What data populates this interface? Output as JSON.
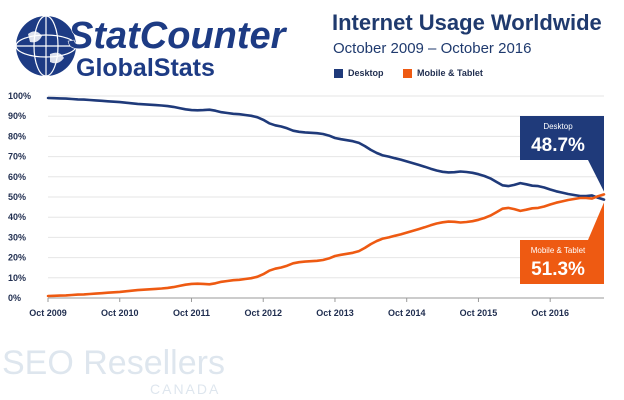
{
  "brand": {
    "logo_line1": "StatCounter",
    "logo_line2": "GlobalStats"
  },
  "header": {
    "title": "Internet Usage Worldwide",
    "subtitle": "October 2009 – October 2016"
  },
  "colors": {
    "desktop": "#1f3a7a",
    "mobile": "#ee5a12",
    "background": "#ffffff",
    "grid": "#e6e6e6"
  },
  "chart_data": {
    "type": "line",
    "title": "Internet Usage Worldwide",
    "subtitle": "October 2009 – October 2016",
    "xlabel": "",
    "ylabel": "",
    "ylim": [
      0,
      100
    ],
    "y_ticks": [
      "0%",
      "10%",
      "20%",
      "30%",
      "40%",
      "50%",
      "60%",
      "70%",
      "80%",
      "90%",
      "100%"
    ],
    "x_ticks": [
      {
        "label": "Oct 2009",
        "at": 0
      },
      {
        "label": "Oct 2010",
        "at": 12
      },
      {
        "label": "Oct 2011",
        "at": 24
      },
      {
        "label": "Oct 2012",
        "at": 36
      },
      {
        "label": "Oct 2013",
        "at": 48
      },
      {
        "label": "Oct 2014",
        "at": 60
      },
      {
        "label": "Oct 2015",
        "at": 72
      },
      {
        "label": "Oct 2016",
        "at": 84
      }
    ],
    "grid": true,
    "legend_position": "top",
    "series": [
      {
        "name": "Desktop",
        "final_label": "Desktop",
        "final_value": "48.7%",
        "values": [
          99.0,
          98.9,
          98.8,
          98.7,
          98.5,
          98.3,
          98.2,
          98.0,
          97.8,
          97.6,
          97.4,
          97.2,
          97.0,
          96.7,
          96.4,
          96.1,
          95.9,
          95.7,
          95.5,
          95.3,
          95.0,
          94.6,
          94.0,
          93.4,
          93.0,
          92.9,
          93.0,
          93.2,
          92.7,
          92.0,
          91.6,
          91.2,
          91.0,
          90.6,
          90.2,
          89.5,
          88.2,
          86.5,
          85.5,
          84.9,
          84.0,
          82.8,
          82.3,
          82.0,
          81.8,
          81.6,
          81.2,
          80.4,
          79.2,
          78.6,
          78.1,
          77.6,
          76.8,
          75.2,
          73.3,
          71.8,
          70.6,
          70.0,
          69.2,
          68.5,
          67.6,
          66.8,
          65.9,
          65.0,
          64.0,
          63.1,
          62.5,
          62.2,
          62.3,
          62.6,
          62.4,
          62.0,
          61.3,
          60.4,
          59.2,
          57.5,
          55.8,
          55.4,
          56.0,
          56.9,
          56.3,
          55.6,
          55.4,
          54.7,
          53.7,
          52.8,
          52.2,
          51.5,
          51.0,
          50.5,
          50.5,
          50.8,
          49.6,
          48.7
        ]
      },
      {
        "name": "Mobile & Tablet",
        "final_label": "Mobile & Tablet",
        "final_value": "51.3%",
        "values": [
          1.0,
          1.1,
          1.2,
          1.3,
          1.5,
          1.7,
          1.8,
          2.0,
          2.2,
          2.4,
          2.6,
          2.8,
          3.0,
          3.3,
          3.6,
          3.9,
          4.1,
          4.3,
          4.5,
          4.7,
          5.0,
          5.4,
          6.0,
          6.6,
          7.0,
          7.1,
          7.0,
          6.8,
          7.3,
          8.0,
          8.4,
          8.8,
          9.0,
          9.4,
          9.8,
          10.5,
          11.8,
          13.5,
          14.5,
          15.1,
          16.0,
          17.2,
          17.7,
          18.0,
          18.2,
          18.4,
          18.8,
          19.6,
          20.8,
          21.4,
          21.9,
          22.4,
          23.2,
          24.8,
          26.7,
          28.2,
          29.4,
          30.0,
          30.8,
          31.5,
          32.4,
          33.2,
          34.1,
          35.0,
          36.0,
          36.9,
          37.5,
          37.8,
          37.7,
          37.4,
          37.6,
          38.0,
          38.7,
          39.6,
          40.8,
          42.5,
          44.2,
          44.6,
          44.0,
          43.1,
          43.7,
          44.4,
          44.6,
          45.3,
          46.3,
          47.2,
          47.8,
          48.5,
          49.0,
          49.5,
          49.5,
          49.2,
          50.4,
          51.3
        ]
      }
    ]
  },
  "watermark": {
    "line1": "SEO Resellers",
    "line2": "CANADA"
  }
}
